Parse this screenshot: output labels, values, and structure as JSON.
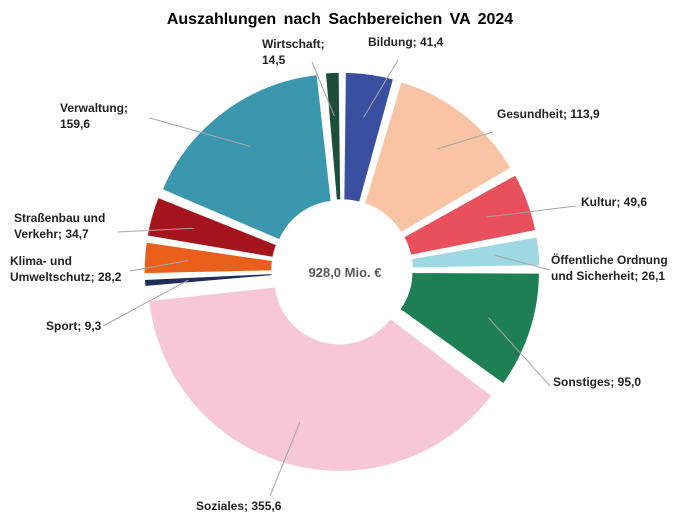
{
  "chart_data": {
    "type": "pie",
    "title": "Auszahlungen nach Sachbereichen VA 2024",
    "center_label": "928,0 Mio. €",
    "slices": [
      {
        "name": "Bildung",
        "value": 41.4,
        "label_lines": [
          "Bildung;  41,4"
        ],
        "color": "#3a4fa0"
      },
      {
        "name": "Gesundheit",
        "value": 113.9,
        "label_lines": [
          "Gesundheit;  113,9"
        ],
        "color": "#f8c4a4"
      },
      {
        "name": "Kultur",
        "value": 49.6,
        "label_lines": [
          "Kultur;  49,6"
        ],
        "color": "#e8505b"
      },
      {
        "name": "Öffentliche Ordnung und Sicherheit",
        "value": 26.1,
        "label_lines": [
          "Öffentliche Ordnung",
          "und Sicherheit;  26,1"
        ],
        "color": "#9ed8e3"
      },
      {
        "name": "Sonstiges",
        "value": 95.0,
        "label_lines": [
          "Sonstiges;  95,0"
        ],
        "color": "#1e7f55"
      },
      {
        "name": "Soziales",
        "value": 355.6,
        "label_lines": [
          "Soziales;  355,6"
        ],
        "color": "#f6c7d7"
      },
      {
        "name": "Sport",
        "value": 9.3,
        "label_lines": [
          "Sport;  9,3"
        ],
        "color": "#1f2d5c"
      },
      {
        "name": "Klima- und Umweltschutz",
        "value": 28.2,
        "label_lines": [
          "Klima-  und",
          "Umweltschutz;  28,2"
        ],
        "color": "#e8601c"
      },
      {
        "name": "Straßenbau und Verkehr",
        "value": 34.7,
        "label_lines": [
          "Straßenbau und",
          "Verkehr;  34,7"
        ],
        "color": "#a3141c"
      },
      {
        "name": "Verwaltung",
        "value": 159.6,
        "label_lines": [
          "Verwaltung;",
          "159,6"
        ],
        "color": "#3a97ad"
      },
      {
        "name": "Wirtschaft",
        "value": 14.5,
        "label_lines": [
          "Wirtschaft;",
          "14,5"
        ],
        "color": "#1e4d3a"
      }
    ]
  }
}
